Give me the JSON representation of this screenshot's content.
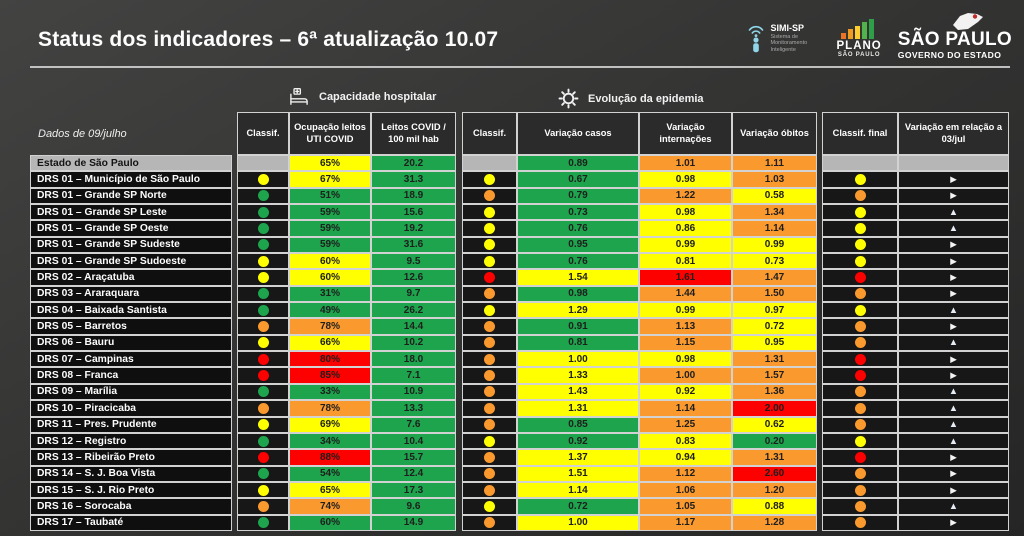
{
  "header": {
    "title": "Status dos indicadores – 6ª atualização 10.07"
  },
  "logos": {
    "simi": {
      "title": "SIMI-SP",
      "subtitle": "Sistema de Monitoramento Inteligente"
    },
    "plano": {
      "title": "PLANO",
      "subtitle": "SÃO PAULO"
    },
    "governo": {
      "title": "SÃO PAULO",
      "subtitle": "GOVERNO DO ESTADO"
    }
  },
  "sections": {
    "hospital_label": "Capacidade hospitalar",
    "epidemic_label": "Evolução da epidemia"
  },
  "icons": {
    "arrow_right": "▶",
    "arrow_up": "▲"
  },
  "colors": {
    "green": "#1da44c",
    "yellow": "#ffff00",
    "orange": "#f9992e",
    "red": "#fd0000",
    "gray": "#b6b6b6"
  },
  "table": {
    "date_label": "Dados de 09/julho",
    "columns": {
      "classif1": "Classif.",
      "uti": "Ocupação leitos UTI COVID",
      "leitos": "Leitos COVID / 100 mil hab",
      "classif2": "Classif.",
      "var_casos": "Variação casos",
      "var_internacoes": "Variação internações",
      "var_obitos": "Variação óbitos",
      "classif_final": "Classif. final",
      "var_relacao": "Variação em relação a 03/jul"
    },
    "rows": [
      {
        "name": "Estado de São Paulo",
        "highlight": true,
        "c1": null,
        "uti": "65%",
        "uti_c": "yellow",
        "leitos": "20.2",
        "leitos_c": "green",
        "c2": null,
        "casos": "0.89",
        "casos_c": "green",
        "intern": "1.01",
        "intern_c": "orange",
        "obitos": "1.11",
        "obitos_c": "orange",
        "cf": null,
        "arrow": "none"
      },
      {
        "name": "DRS 01 – Município de São Paulo",
        "highlight": false,
        "c1": "yellow",
        "uti": "67%",
        "uti_c": "yellow",
        "leitos": "31.3",
        "leitos_c": "green",
        "c2": "yellow",
        "casos": "0.67",
        "casos_c": "green",
        "intern": "0.98",
        "intern_c": "yellow",
        "obitos": "1.03",
        "obitos_c": "orange",
        "cf": "yellow",
        "arrow": "right"
      },
      {
        "name": "DRS 01 – Grande SP Norte",
        "highlight": false,
        "c1": "green",
        "uti": "51%",
        "uti_c": "green",
        "leitos": "18.9",
        "leitos_c": "green",
        "c2": "orange",
        "casos": "0.79",
        "casos_c": "green",
        "intern": "1.22",
        "intern_c": "orange",
        "obitos": "0.58",
        "obitos_c": "yellow",
        "cf": "orange",
        "arrow": "right"
      },
      {
        "name": "DRS 01 – Grande SP Leste",
        "highlight": false,
        "c1": "green",
        "uti": "59%",
        "uti_c": "green",
        "leitos": "15.6",
        "leitos_c": "green",
        "c2": "yellow",
        "casos": "0.73",
        "casos_c": "green",
        "intern": "0.98",
        "intern_c": "yellow",
        "obitos": "1.34",
        "obitos_c": "orange",
        "cf": "yellow",
        "arrow": "up"
      },
      {
        "name": "DRS 01 – Grande SP Oeste",
        "highlight": false,
        "c1": "green",
        "uti": "59%",
        "uti_c": "green",
        "leitos": "19.2",
        "leitos_c": "green",
        "c2": "yellow",
        "casos": "0.76",
        "casos_c": "green",
        "intern": "0.86",
        "intern_c": "yellow",
        "obitos": "1.14",
        "obitos_c": "orange",
        "cf": "yellow",
        "arrow": "up"
      },
      {
        "name": "DRS 01 – Grande SP Sudeste",
        "highlight": false,
        "c1": "green",
        "uti": "59%",
        "uti_c": "green",
        "leitos": "31.6",
        "leitos_c": "green",
        "c2": "yellow",
        "casos": "0.95",
        "casos_c": "green",
        "intern": "0.99",
        "intern_c": "yellow",
        "obitos": "0.99",
        "obitos_c": "yellow",
        "cf": "yellow",
        "arrow": "right"
      },
      {
        "name": "DRS 01 – Grande SP Sudoeste",
        "highlight": false,
        "c1": "yellow",
        "uti": "60%",
        "uti_c": "yellow",
        "leitos": "9.5",
        "leitos_c": "green",
        "c2": "yellow",
        "casos": "0.76",
        "casos_c": "green",
        "intern": "0.81",
        "intern_c": "yellow",
        "obitos": "0.73",
        "obitos_c": "yellow",
        "cf": "yellow",
        "arrow": "right"
      },
      {
        "name": "DRS 02 – Araçatuba",
        "highlight": false,
        "c1": "yellow",
        "uti": "60%",
        "uti_c": "yellow",
        "leitos": "12.6",
        "leitos_c": "green",
        "c2": "red",
        "casos": "1.54",
        "casos_c": "yellow",
        "intern": "1.61",
        "intern_c": "red",
        "obitos": "1.47",
        "obitos_c": "orange",
        "cf": "red",
        "arrow": "right"
      },
      {
        "name": "DRS 03 – Araraquara",
        "highlight": false,
        "c1": "green",
        "uti": "31%",
        "uti_c": "green",
        "leitos": "9.7",
        "leitos_c": "green",
        "c2": "orange",
        "casos": "0.98",
        "casos_c": "green",
        "intern": "1.44",
        "intern_c": "orange",
        "obitos": "1.50",
        "obitos_c": "orange",
        "cf": "orange",
        "arrow": "right"
      },
      {
        "name": "DRS 04 – Baixada Santista",
        "highlight": false,
        "c1": "green",
        "uti": "49%",
        "uti_c": "green",
        "leitos": "26.2",
        "leitos_c": "green",
        "c2": "yellow",
        "casos": "1.29",
        "casos_c": "yellow",
        "intern": "0.99",
        "intern_c": "yellow",
        "obitos": "0.97",
        "obitos_c": "yellow",
        "cf": "yellow",
        "arrow": "up"
      },
      {
        "name": "DRS 05 – Barretos",
        "highlight": false,
        "c1": "orange",
        "uti": "78%",
        "uti_c": "orange",
        "leitos": "14.4",
        "leitos_c": "green",
        "c2": "orange",
        "casos": "0.91",
        "casos_c": "green",
        "intern": "1.13",
        "intern_c": "orange",
        "obitos": "0.72",
        "obitos_c": "yellow",
        "cf": "orange",
        "arrow": "right"
      },
      {
        "name": "DRS 06 – Bauru",
        "highlight": false,
        "c1": "yellow",
        "uti": "66%",
        "uti_c": "yellow",
        "leitos": "10.2",
        "leitos_c": "green",
        "c2": "orange",
        "casos": "0.81",
        "casos_c": "green",
        "intern": "1.15",
        "intern_c": "orange",
        "obitos": "0.95",
        "obitos_c": "yellow",
        "cf": "orange",
        "arrow": "up"
      },
      {
        "name": "DRS 07 – Campinas",
        "highlight": false,
        "c1": "red",
        "uti": "80%",
        "uti_c": "red",
        "leitos": "18.0",
        "leitos_c": "green",
        "c2": "orange",
        "casos": "1.00",
        "casos_c": "yellow",
        "intern": "0.98",
        "intern_c": "yellow",
        "obitos": "1.31",
        "obitos_c": "orange",
        "cf": "red",
        "arrow": "right"
      },
      {
        "name": "DRS 08 – Franca",
        "highlight": false,
        "c1": "red",
        "uti": "85%",
        "uti_c": "red",
        "leitos": "7.1",
        "leitos_c": "green",
        "c2": "orange",
        "casos": "1.33",
        "casos_c": "yellow",
        "intern": "1.00",
        "intern_c": "orange",
        "obitos": "1.57",
        "obitos_c": "orange",
        "cf": "red",
        "arrow": "right"
      },
      {
        "name": "DRS 09 – Marília",
        "highlight": false,
        "c1": "green",
        "uti": "33%",
        "uti_c": "green",
        "leitos": "10.9",
        "leitos_c": "green",
        "c2": "orange",
        "casos": "1.43",
        "casos_c": "yellow",
        "intern": "0.92",
        "intern_c": "yellow",
        "obitos": "1.36",
        "obitos_c": "orange",
        "cf": "orange",
        "arrow": "up"
      },
      {
        "name": "DRS 10 – Piracicaba",
        "highlight": false,
        "c1": "orange",
        "uti": "78%",
        "uti_c": "orange",
        "leitos": "13.3",
        "leitos_c": "green",
        "c2": "orange",
        "casos": "1.31",
        "casos_c": "yellow",
        "intern": "1.14",
        "intern_c": "orange",
        "obitos": "2.00",
        "obitos_c": "red",
        "cf": "orange",
        "arrow": "up"
      },
      {
        "name": "DRS 11 – Pres. Prudente",
        "highlight": false,
        "c1": "yellow",
        "uti": "69%",
        "uti_c": "yellow",
        "leitos": "7.6",
        "leitos_c": "green",
        "c2": "orange",
        "casos": "0.85",
        "casos_c": "green",
        "intern": "1.25",
        "intern_c": "orange",
        "obitos": "0.62",
        "obitos_c": "yellow",
        "cf": "orange",
        "arrow": "up"
      },
      {
        "name": "DRS 12 – Registro",
        "highlight": false,
        "c1": "green",
        "uti": "34%",
        "uti_c": "green",
        "leitos": "10.4",
        "leitos_c": "green",
        "c2": "yellow",
        "casos": "0.92",
        "casos_c": "green",
        "intern": "0.83",
        "intern_c": "yellow",
        "obitos": "0.20",
        "obitos_c": "green",
        "cf": "yellow",
        "arrow": "up"
      },
      {
        "name": "DRS 13 – Ribeirão Preto",
        "highlight": false,
        "c1": "red",
        "uti": "88%",
        "uti_c": "red",
        "leitos": "15.7",
        "leitos_c": "green",
        "c2": "orange",
        "casos": "1.37",
        "casos_c": "yellow",
        "intern": "0.94",
        "intern_c": "yellow",
        "obitos": "1.31",
        "obitos_c": "orange",
        "cf": "red",
        "arrow": "right"
      },
      {
        "name": "DRS 14 – S. J. Boa Vista",
        "highlight": false,
        "c1": "green",
        "uti": "54%",
        "uti_c": "green",
        "leitos": "12.4",
        "leitos_c": "green",
        "c2": "orange",
        "casos": "1.51",
        "casos_c": "yellow",
        "intern": "1.12",
        "intern_c": "orange",
        "obitos": "2.60",
        "obitos_c": "red",
        "cf": "orange",
        "arrow": "right"
      },
      {
        "name": "DRS 15 – S. J. Rio Preto",
        "highlight": false,
        "c1": "yellow",
        "uti": "65%",
        "uti_c": "yellow",
        "leitos": "17.3",
        "leitos_c": "green",
        "c2": "orange",
        "casos": "1.14",
        "casos_c": "yellow",
        "intern": "1.06",
        "intern_c": "orange",
        "obitos": "1.20",
        "obitos_c": "orange",
        "cf": "orange",
        "arrow": "right"
      },
      {
        "name": "DRS 16 – Sorocaba",
        "highlight": false,
        "c1": "orange",
        "uti": "74%",
        "uti_c": "orange",
        "leitos": "9.6",
        "leitos_c": "green",
        "c2": "yellow",
        "casos": "0.72",
        "casos_c": "green",
        "intern": "1.05",
        "intern_c": "orange",
        "obitos": "0.88",
        "obitos_c": "yellow",
        "cf": "orange",
        "arrow": "up"
      },
      {
        "name": "DRS 17 – Taubaté",
        "highlight": false,
        "c1": "green",
        "uti": "60%",
        "uti_c": "green",
        "leitos": "14.9",
        "leitos_c": "green",
        "c2": "orange",
        "casos": "1.00",
        "casos_c": "yellow",
        "intern": "1.17",
        "intern_c": "orange",
        "obitos": "1.28",
        "obitos_c": "orange",
        "cf": "orange",
        "arrow": "right"
      }
    ]
  }
}
